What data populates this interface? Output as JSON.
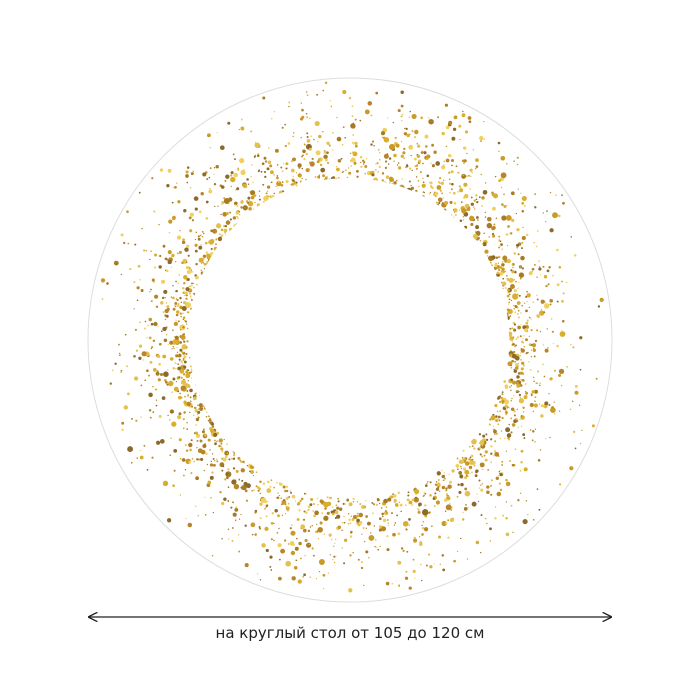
{
  "caption": "на круглый стол от 105 до 120 см"
}
